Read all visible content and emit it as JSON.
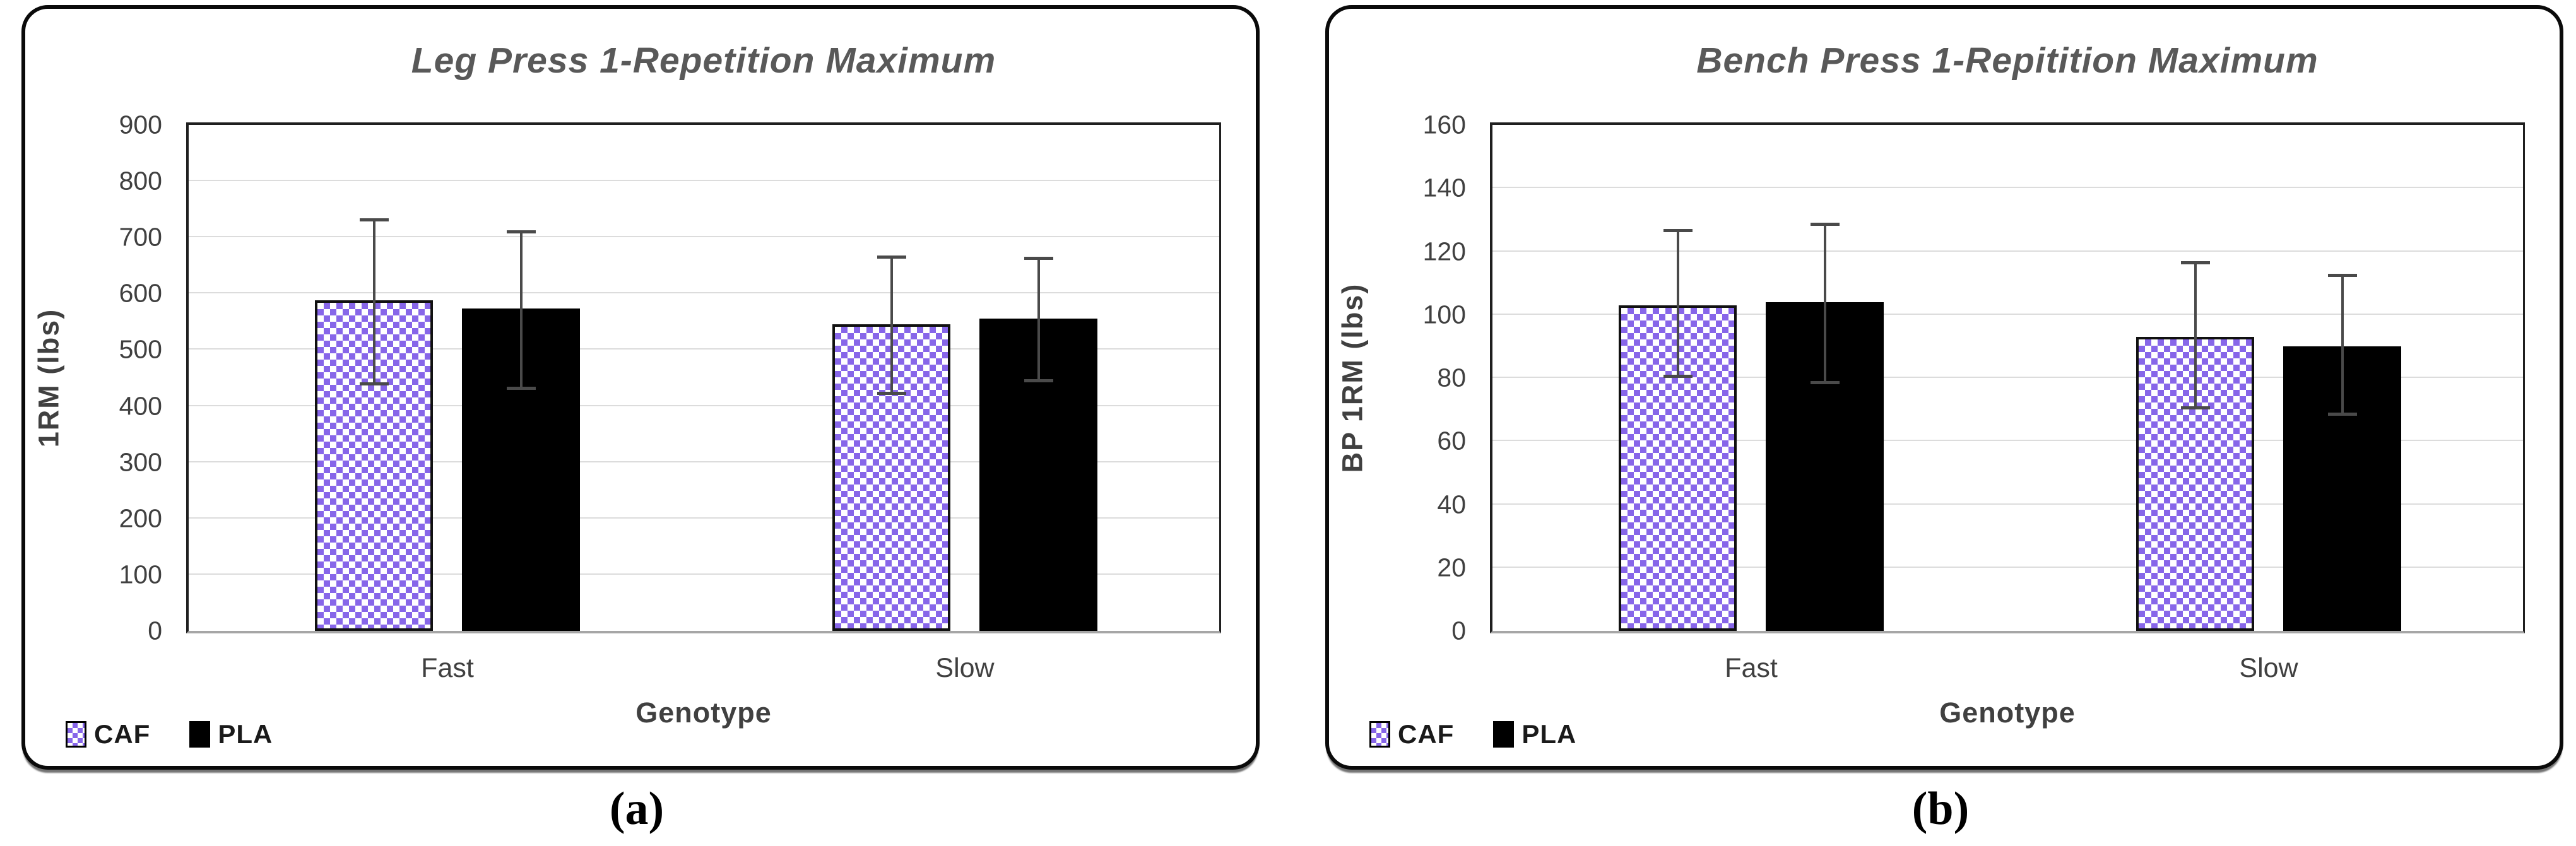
{
  "captions": [
    "(a)",
    "(b)"
  ],
  "colors": {
    "caf_purple": "#8766E9",
    "pla_black": "#000000",
    "title_gray": "#595959",
    "axis_text_gray": "#404040",
    "gridline_gray": "#DCDCDC",
    "baseline_gray": "#A6A6A6",
    "error_bar_gray": "#4A4A4A",
    "panel_border_black": "#0A0A0A"
  },
  "chart_data": [
    {
      "type": "bar",
      "title": "Leg Press 1-Repetition Maximum",
      "xlabel": "Genotype",
      "ylabel": "1RM (lbs)",
      "ylim": [
        0,
        900
      ],
      "ytick_step": 100,
      "grid": true,
      "legend_position": "bottom-left",
      "categories": [
        "Fast",
        "Slow"
      ],
      "series": [
        {
          "name": "CAF",
          "style": "checker",
          "values": [
            588,
            545
          ],
          "error_low": [
            436,
            420
          ],
          "error_high": [
            734,
            668
          ]
        },
        {
          "name": "PLA",
          "style": "solid",
          "values": [
            573,
            555
          ],
          "error_low": [
            429,
            442
          ],
          "error_high": [
            713,
            665
          ]
        }
      ]
    },
    {
      "type": "bar",
      "title": "Bench Press 1-Repitition Maximum",
      "xlabel": "Genotype",
      "ylabel": "BP 1RM (lbs)",
      "ylim": [
        0,
        160
      ],
      "ytick_step": 20,
      "grid": true,
      "legend_position": "bottom-left",
      "categories": [
        "Fast",
        "Slow"
      ],
      "series": [
        {
          "name": "CAF",
          "style": "checker",
          "values": [
            103,
            93
          ],
          "error_low": [
            80,
            70
          ],
          "error_high": [
            127,
            117
          ]
        },
        {
          "name": "PLA",
          "style": "solid",
          "values": [
            104,
            90
          ],
          "error_low": [
            78,
            68
          ],
          "error_high": [
            129,
            113
          ]
        }
      ]
    }
  ]
}
